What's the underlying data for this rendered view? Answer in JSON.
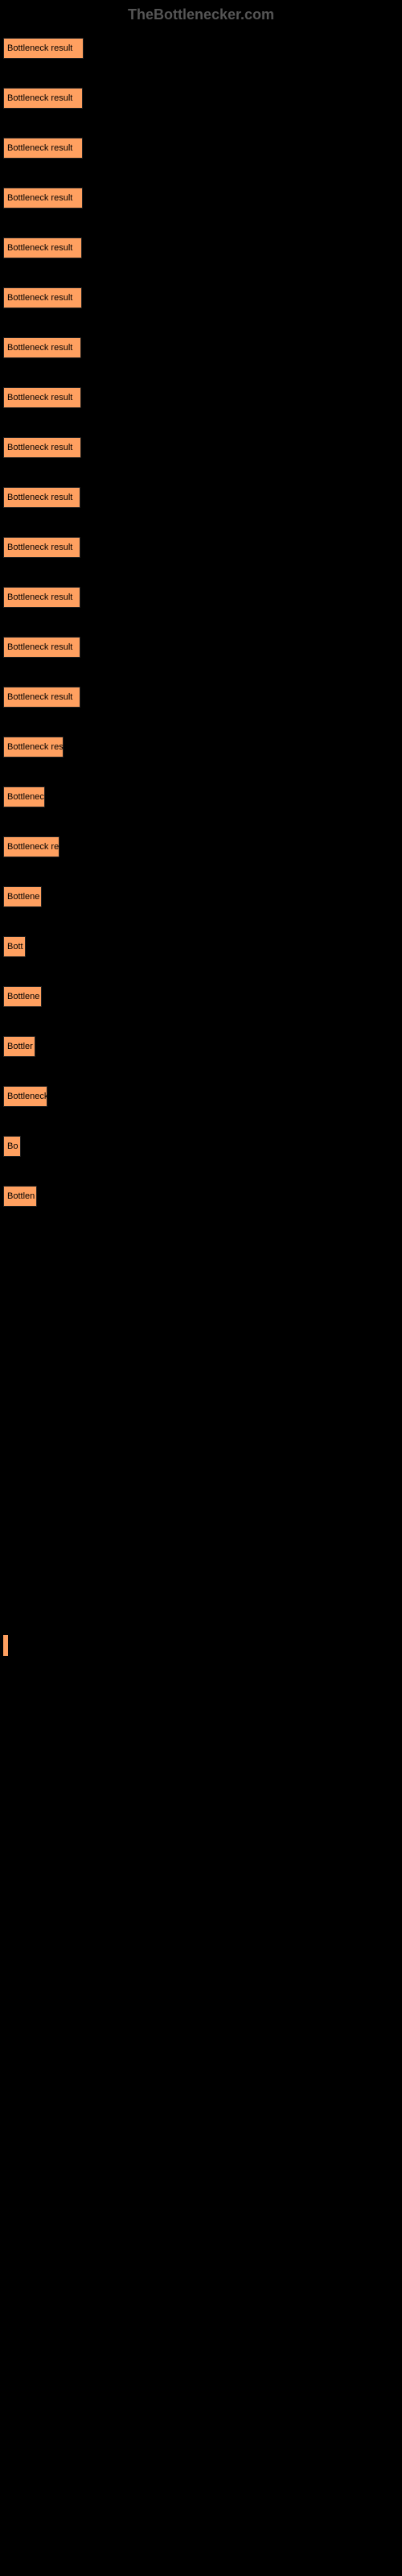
{
  "watermark": "TheBottlenecker.com",
  "chart": {
    "type": "bar",
    "background_color": "#000000",
    "bar_color": "#ffa060",
    "bar_border_color": "#202020",
    "label_color": "#000000",
    "label_fontsize": 11,
    "max_width": 100,
    "bars": [
      {
        "label": "Bottleneck result",
        "width": 100
      },
      {
        "label": "Bottleneck result",
        "width": 99
      },
      {
        "label": "Bottleneck result",
        "width": 99
      },
      {
        "label": "Bottleneck result",
        "width": 99
      },
      {
        "label": "Bottleneck result",
        "width": 98
      },
      {
        "label": "Bottleneck result",
        "width": 98
      },
      {
        "label": "Bottleneck result",
        "width": 97
      },
      {
        "label": "Bottleneck result",
        "width": 97
      },
      {
        "label": "Bottleneck result",
        "width": 97
      },
      {
        "label": "Bottleneck result",
        "width": 96
      },
      {
        "label": "Bottleneck result",
        "width": 96
      },
      {
        "label": "Bottleneck result",
        "width": 96
      },
      {
        "label": "Bottleneck result",
        "width": 96
      },
      {
        "label": "Bottleneck result",
        "width": 96
      },
      {
        "label": "Bottleneck res",
        "width": 75
      },
      {
        "label": "Bottlenec",
        "width": 52
      },
      {
        "label": "Bottleneck re",
        "width": 70
      },
      {
        "label": "Bottlene",
        "width": 48
      },
      {
        "label": "Bott",
        "width": 28
      },
      {
        "label": "Bottlene",
        "width": 48
      },
      {
        "label": "Bottler",
        "width": 40
      },
      {
        "label": "Bottleneck",
        "width": 55
      },
      {
        "label": "Bo",
        "width": 22
      },
      {
        "label": "Bottlen",
        "width": 42
      },
      {
        "label": "",
        "width": 0
      },
      {
        "label": "",
        "width": 0
      },
      {
        "label": "",
        "width": 0
      },
      {
        "label": "",
        "width": 0
      },
      {
        "label": "",
        "width": 0
      },
      {
        "label": "",
        "width": 0
      },
      {
        "label": "",
        "width": 0
      },
      {
        "label": "",
        "width": 0
      },
      {
        "label": "",
        "width": 2
      },
      {
        "label": "",
        "width": 0
      },
      {
        "label": "",
        "width": 0
      },
      {
        "label": "",
        "width": 0
      },
      {
        "label": "",
        "width": 0
      },
      {
        "label": "",
        "width": 0
      },
      {
        "label": "",
        "width": 0
      },
      {
        "label": "",
        "width": 0
      },
      {
        "label": "",
        "width": 0
      },
      {
        "label": "",
        "width": 0
      },
      {
        "label": "",
        "width": 0
      },
      {
        "label": "",
        "width": 0
      },
      {
        "label": "",
        "width": 0
      },
      {
        "label": "",
        "width": 0
      },
      {
        "label": "",
        "width": 0
      },
      {
        "label": "",
        "width": 0
      },
      {
        "label": "",
        "width": 0
      },
      {
        "label": "",
        "width": 0
      }
    ]
  }
}
